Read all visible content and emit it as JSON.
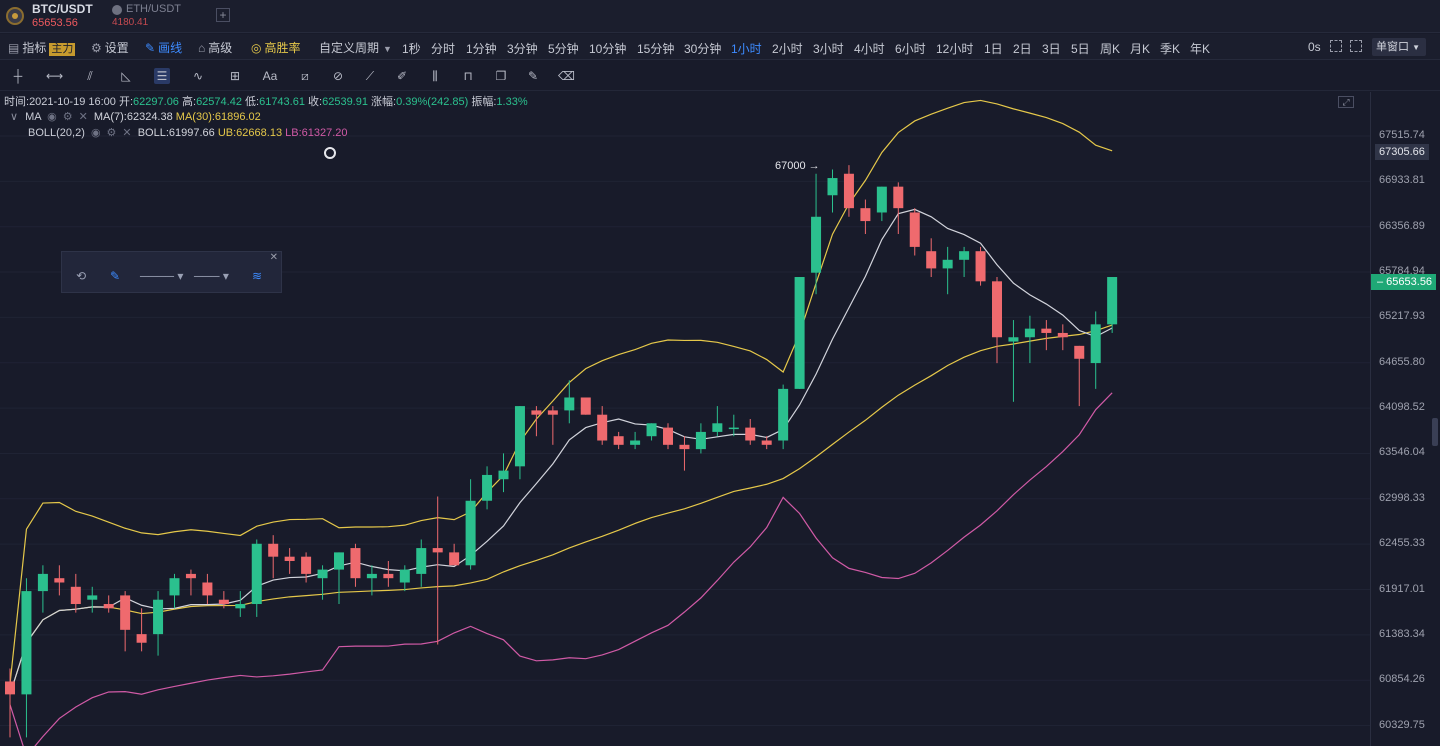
{
  "symbols": {
    "primary": {
      "name": "BTC/USDT",
      "price": "65653.56"
    },
    "secondary": {
      "name": "ETH/USDT",
      "price": "4180.41"
    },
    "add_label": "+"
  },
  "menu": {
    "indicators": "指标",
    "main_tag": "主力",
    "settings": "设置",
    "drawing": "画线",
    "advanced": "高级",
    "high_win": "高胜率",
    "custom_period": "自定义周期",
    "intervals": [
      "1秒",
      "分时",
      "1分钟",
      "3分钟",
      "5分钟",
      "10分钟",
      "15分钟",
      "30分钟",
      "1小时",
      "2小时",
      "3小时",
      "4小时",
      "6小时",
      "12小时",
      "1日",
      "2日",
      "3日",
      "5日",
      "周K",
      "月K",
      "季K",
      "年K"
    ],
    "active_interval": "1小时",
    "realtime": "0s",
    "window_mode": "单窗口"
  },
  "tools": [
    "crosshair-tool",
    "horizontal-line-tool",
    "trend-line-tool",
    "angle-tool",
    "parallel-channel-tool",
    "wave-tool",
    "rectangle-tool",
    "text-tool",
    "measure-tool",
    "fibonacci-tool",
    "ruler-tool",
    "brush-tool",
    "pattern-tool",
    "lock-tool",
    "copy-tool",
    "edit-tool",
    "delete-tool"
  ],
  "info": {
    "time_label": "时间:",
    "time": "2021-10-19 16:00",
    "open_label": "开:",
    "open": "62297.06",
    "high_label": "高:",
    "high": "62574.42",
    "low_label": "低:",
    "low": "61743.61",
    "close_label": "收:",
    "close": "62539.91",
    "change_label": "涨幅:",
    "change": "0.39%(242.85)",
    "amplitude_label": "振幅:",
    "amplitude": "1.33%"
  },
  "indicators": {
    "ma_name": "MA",
    "ma7": "MA(7):62324.38",
    "ma30": "MA(30):61896.02",
    "boll_name": "BOLL(20,2)",
    "boll": "BOLL:61997.66",
    "ub": "UB:62668.13",
    "lb": "LB:61327.20"
  },
  "colors": {
    "up": "#2bc08e",
    "down": "#ef6a6e",
    "ma7": "#d2d4dc",
    "ma30_ub": "#e5c84a",
    "lb": "#d05aa6",
    "active": "#3d8bff"
  },
  "price_axis": {
    "ticks": [
      "67515.74",
      "66933.81",
      "66356.89",
      "65784.94",
      "65217.93",
      "64655.80",
      "64098.52",
      "63546.04",
      "62998.33",
      "62455.33",
      "61917.01",
      "61383.34",
      "60854.26",
      "60329.75"
    ],
    "high_label": "67305.66",
    "last_label": "65653.56"
  },
  "annotation": {
    "high_marker": "67000 →"
  },
  "chart_data": {
    "type": "candlestick",
    "ylim": [
      60200,
      67800
    ],
    "candles": [
      [
        60950,
        61100,
        60300,
        60800
      ],
      [
        60800,
        62150,
        60300,
        62000
      ],
      [
        62000,
        62300,
        61750,
        62200
      ],
      [
        62150,
        62300,
        61950,
        62100
      ],
      [
        62050,
        62200,
        61750,
        61850
      ],
      [
        61900,
        62050,
        61750,
        61950
      ],
      [
        61850,
        61950,
        61750,
        61800
      ],
      [
        61950,
        62000,
        61300,
        61550
      ],
      [
        61500,
        61800,
        61300,
        61400
      ],
      [
        61500,
        62000,
        61250,
        61900
      ],
      [
        61950,
        62200,
        61800,
        62150
      ],
      [
        62200,
        62250,
        61950,
        62150
      ],
      [
        62100,
        62200,
        61850,
        61950
      ],
      [
        61900,
        62000,
        61800,
        61850
      ],
      [
        61800,
        62000,
        61700,
        61850
      ],
      [
        61850,
        62600,
        61700,
        62550
      ],
      [
        62550,
        62650,
        62150,
        62400
      ],
      [
        62400,
        62500,
        62200,
        62350
      ],
      [
        62400,
        62450,
        62100,
        62200
      ],
      [
        62150,
        62300,
        61900,
        62250
      ],
      [
        62250,
        62450,
        61850,
        62450
      ],
      [
        62500,
        62550,
        62050,
        62150
      ],
      [
        62150,
        62300,
        61950,
        62200
      ],
      [
        62200,
        62350,
        62050,
        62150
      ],
      [
        62100,
        62300,
        62000,
        62250
      ],
      [
        62200,
        62600,
        62050,
        62500
      ],
      [
        62500,
        63100,
        61380,
        62450
      ],
      [
        62450,
        62550,
        62300,
        62300
      ],
      [
        62300,
        63300,
        62250,
        63050
      ],
      [
        63050,
        63450,
        62950,
        63350
      ],
      [
        63300,
        63600,
        63150,
        63400
      ],
      [
        63450,
        64150,
        63300,
        64150
      ],
      [
        64100,
        64150,
        63800,
        64050
      ],
      [
        64100,
        64150,
        63700,
        64050
      ],
      [
        64100,
        64450,
        63950,
        64250
      ],
      [
        64250,
        64250,
        64050,
        64050
      ],
      [
        64050,
        64150,
        63700,
        63750
      ],
      [
        63800,
        63850,
        63650,
        63700
      ],
      [
        63700,
        63850,
        63650,
        63750
      ],
      [
        63800,
        63950,
        63750,
        63950
      ],
      [
        63900,
        63950,
        63650,
        63700
      ],
      [
        63700,
        63800,
        63400,
        63650
      ],
      [
        63650,
        63950,
        63600,
        63850
      ],
      [
        63850,
        64150,
        63800,
        63950
      ],
      [
        63900,
        64050,
        63800,
        63900
      ],
      [
        63900,
        64000,
        63700,
        63750
      ],
      [
        63750,
        63800,
        63650,
        63700
      ],
      [
        63750,
        64400,
        63650,
        64350
      ],
      [
        64350,
        65650,
        64350,
        65650
      ],
      [
        65700,
        66850,
        65450,
        66350
      ],
      [
        66600,
        66900,
        66400,
        66800
      ],
      [
        66850,
        66950,
        66350,
        66450
      ],
      [
        66450,
        66550,
        66150,
        66300
      ],
      [
        66400,
        66700,
        66300,
        66700
      ],
      [
        66700,
        66750,
        66150,
        66450
      ],
      [
        66400,
        66450,
        65900,
        66000
      ],
      [
        65950,
        66100,
        65650,
        65750
      ],
      [
        65750,
        66000,
        65450,
        65850
      ],
      [
        65850,
        66000,
        65650,
        65950
      ],
      [
        65950,
        66000,
        65550,
        65600
      ],
      [
        65600,
        65650,
        64650,
        64950
      ],
      [
        64900,
        65150,
        64200,
        64950
      ],
      [
        64950,
        65200,
        64650,
        65050
      ],
      [
        65050,
        65150,
        64800,
        65000
      ],
      [
        65000,
        65100,
        64800,
        64950
      ],
      [
        64850,
        64850,
        64150,
        64700
      ],
      [
        64650,
        65250,
        64350,
        65100
      ],
      [
        65100,
        65650,
        65000,
        65650
      ]
    ]
  }
}
